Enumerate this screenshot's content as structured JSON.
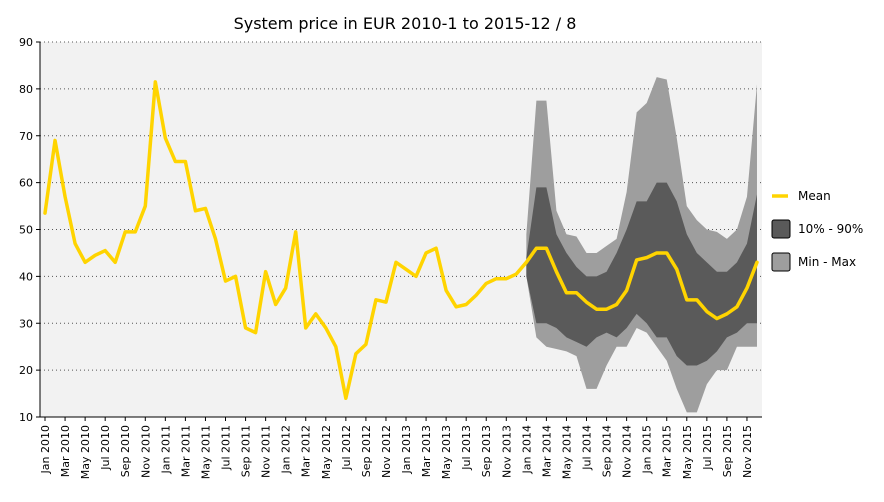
{
  "chart_data": {
    "type": "line",
    "title": "System price in EUR 2010-1 to 2015-12 / 8",
    "xlabel": "",
    "ylabel": "",
    "ylim": [
      10,
      90
    ],
    "y_ticks": [
      10,
      20,
      30,
      40,
      50,
      60,
      70,
      80,
      90
    ],
    "grid": "horizontal dotted",
    "x_tick_labels": [
      "Jan 2010",
      "Mar 2010",
      "May 2010",
      "Jul 2010",
      "Sep 2010",
      "Nov 2010",
      "Jan 2011",
      "Mar 2011",
      "May 2011",
      "Jul 2011",
      "Sep 2011",
      "Nov 2011",
      "Jan 2012",
      "Mar 2012",
      "May 2012",
      "Jul 2012",
      "Sep 2012",
      "Nov 2012",
      "Jan 2013",
      "Mar 2013",
      "May 2013",
      "Jul 2013",
      "Sep 2013",
      "Nov 2013",
      "Jan 2014",
      "Mar 2014",
      "May 2014",
      "Jul 2014",
      "Sep 2014",
      "Nov 2014",
      "Jan 2015",
      "Mar 2015",
      "May 2015",
      "Jul 2015",
      "Sep 2015",
      "Nov 2015"
    ],
    "months_total": 72,
    "colors": {
      "mean": "#ffd400",
      "band_10_90": "#5a5a5a",
      "band_min_max": "#9e9e9e",
      "plot_background": "#f2f2f2"
    },
    "legend": {
      "position": "right",
      "items": [
        {
          "label": "Mean",
          "kind": "line"
        },
        {
          "label": "10% - 90%",
          "kind": "dark-box"
        },
        {
          "label": "Min - Max",
          "kind": "light-box"
        }
      ]
    },
    "series": [
      {
        "name": "Mean",
        "values": [
          53.5,
          69,
          57,
          47,
          43,
          44.5,
          45.5,
          43,
          49.5,
          49.5,
          55,
          81.5,
          69.5,
          64.5,
          64.5,
          54,
          54.5,
          48,
          39,
          40,
          29,
          28,
          41,
          34,
          37.5,
          49.5,
          29,
          32,
          29,
          25,
          14,
          23.5,
          25.5,
          35,
          34.5,
          43,
          41.5,
          40,
          45,
          46,
          37,
          33.5,
          34,
          36,
          38.5,
          39.5,
          39.5,
          40.5,
          43,
          46,
          46,
          41,
          36.5,
          36.5,
          34.5,
          33,
          33,
          34,
          37,
          43.5,
          44,
          45,
          45,
          41.5,
          35,
          35,
          32.5,
          31,
          32,
          33.5,
          37.5,
          43
        ]
      },
      {
        "name": "10% - 90%",
        "start_month": 48,
        "upper": [
          44,
          59,
          59,
          49,
          45,
          42,
          40,
          40,
          41,
          45,
          50,
          56,
          56,
          60,
          60,
          56,
          49,
          45,
          43,
          41,
          41,
          43,
          47,
          57.5
        ],
        "lower": [
          40,
          30,
          30,
          29,
          27,
          26,
          25,
          27,
          28,
          27,
          29,
          32,
          30,
          27,
          27,
          23,
          21,
          21,
          22,
          24,
          27,
          28,
          30,
          30
        ]
      },
      {
        "name": "Min - Max",
        "start_month": 48,
        "upper": [
          49,
          77.5,
          77.5,
          54,
          49,
          48.5,
          45,
          45,
          46.5,
          48,
          58,
          75,
          77,
          82.5,
          82,
          69.5,
          55,
          52,
          50,
          49.5,
          48,
          50,
          57,
          81
        ],
        "lower": [
          40,
          27,
          25,
          24.5,
          24,
          23,
          16,
          16,
          21,
          25,
          25,
          29,
          28,
          25,
          22,
          16,
          11,
          11,
          17,
          20,
          20,
          25,
          25,
          25
        ]
      }
    ]
  }
}
